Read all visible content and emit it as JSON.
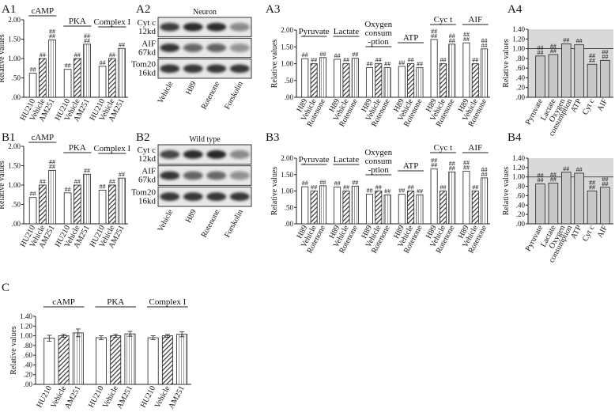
{
  "panels": [
    {
      "label": "A1",
      "kind": "bar",
      "ylabel": "Relative values",
      "ylim": [
        0,
        2.0
      ],
      "yticks": [
        "2.00",
        "1.50",
        "1.00",
        ".50",
        ".00"
      ],
      "groups": [
        "cAMP",
        "PKA",
        "Complex I"
      ],
      "categories": [
        [
          "HU210",
          "Vehicle",
          "AM251"
        ],
        [
          "HU210",
          "Vehicle",
          "AM251"
        ],
        [
          "HU210",
          "Vehicle",
          "AM251"
        ]
      ],
      "values": [
        [
          0.62,
          1.0,
          1.48
        ],
        [
          0.72,
          1.0,
          1.37
        ],
        [
          0.8,
          1.0,
          1.26
        ]
      ],
      "marks": [
        [
          "##",
          "##",
          "##"
        ],
        [
          "##",
          "##",
          "##"
        ],
        [
          "##",
          "##",
          "##"
        ]
      ]
    },
    {
      "label": "B1",
      "kind": "bar",
      "ylabel": "Relative values",
      "ylim": [
        0,
        2.0
      ],
      "yticks": [
        "2.00",
        "1.50",
        "1.00",
        ".50",
        ".00"
      ],
      "groups": [
        "cAMP",
        "PKA",
        "Complex I"
      ],
      "categories": [
        [
          "HU210",
          "Vehicle",
          "AM251"
        ],
        [
          "HU210",
          "Vehicle",
          "AM251"
        ],
        [
          "HU210",
          "Vehicle",
          "AM251"
        ]
      ],
      "values": [
        [
          0.68,
          1.0,
          1.38
        ],
        [
          0.8,
          1.0,
          1.28
        ],
        [
          0.87,
          1.0,
          1.18
        ]
      ],
      "marks": [
        [
          "##",
          "##",
          "##"
        ],
        [
          "##",
          "##",
          "##"
        ],
        [
          "##",
          "##",
          "##"
        ]
      ]
    },
    {
      "label": "A2",
      "kind": "blot",
      "title": "Neuron",
      "rows": [
        "Cyt c\n12kd",
        "AIF\n67kd",
        "Tom20\n16kd"
      ],
      "lanes": [
        "Vehicle",
        "H89",
        "Rotenone",
        "Forskolin"
      ],
      "intensity": [
        [
          0.78,
          0.9,
          0.9,
          0.45
        ],
        [
          0.82,
          0.6,
          0.62,
          0.4
        ],
        [
          0.85,
          0.85,
          0.85,
          0.85
        ]
      ]
    },
    {
      "label": "B2",
      "kind": "blot",
      "title": "Wild type",
      "rows": [
        "Cyt c\n12kd",
        "AIF\n67kd",
        "Tom20\n16kd"
      ],
      "lanes": [
        "Vehicle",
        "H89",
        "Rotenone",
        "Forskolin"
      ],
      "intensity": [
        [
          0.75,
          0.9,
          0.92,
          0.45
        ],
        [
          0.82,
          0.62,
          0.6,
          0.42
        ],
        [
          0.85,
          0.85,
          0.85,
          0.85
        ]
      ]
    },
    {
      "label": "A3",
      "kind": "bar",
      "ylabel": "Relative values",
      "ylim": [
        0,
        2.0
      ],
      "yticks": [
        "2.00",
        "1.50",
        "1.00",
        ".50",
        ".00"
      ],
      "groups": [
        "Pyruvate",
        "Lactate",
        "Oxygen\nconsum\n-ption",
        "ATP",
        "Cyc t",
        "AIF"
      ],
      "categories": [
        [
          "H89",
          "Vehicle",
          "Rotenone"
        ],
        [
          "H89",
          "Vehicle",
          "Rotenone"
        ],
        [
          "H89",
          "Vehicle",
          "Rotenone"
        ],
        [
          "H89",
          "Vehicle",
          "Rotenone"
        ],
        [
          "H89",
          "Vehicle",
          "Rotenone"
        ],
        [
          "H89",
          "Vehicle",
          "Rotenone"
        ]
      ],
      "values": [
        [
          1.15,
          1.0,
          1.18
        ],
        [
          1.13,
          1.0,
          1.16
        ],
        [
          0.88,
          1.0,
          0.88
        ],
        [
          0.92,
          1.0,
          0.88
        ],
        [
          1.72,
          1.0,
          1.58
        ],
        [
          1.62,
          1.0,
          1.44
        ]
      ],
      "marks": [
        [
          "##",
          "##",
          "##"
        ],
        [
          "##",
          "##",
          "##"
        ],
        [
          "##",
          "##",
          "##"
        ],
        [
          "##",
          "##",
          "##"
        ],
        [
          "##",
          "##",
          "##"
        ],
        [
          "##",
          "##",
          "##"
        ]
      ]
    },
    {
      "label": "B3",
      "kind": "bar",
      "ylabel": "Relative values",
      "ylim": [
        0,
        2.0
      ],
      "yticks": [
        "2.00",
        "1.50",
        "1.00",
        ".50",
        ".00"
      ],
      "groups": [
        "Pyruvate",
        "Lactate",
        "Oxygen\nconsum\n-ption",
        "ATP",
        "Cyc t",
        "AIF"
      ],
      "categories": [
        [
          "H89",
          "Vehicle",
          "Rotenone"
        ],
        [
          "H89",
          "Vehicle",
          "Rotenone"
        ],
        [
          "H89",
          "Vehicle",
          "Rotenone"
        ],
        [
          "H89",
          "Vehicle",
          "Rotenone"
        ],
        [
          "H89",
          "Vehicle",
          "Rotenone"
        ],
        [
          "H89",
          "Vehicle",
          "Rotenone"
        ]
      ],
      "values": [
        [
          1.13,
          1.0,
          1.16
        ],
        [
          1.12,
          1.0,
          1.15
        ],
        [
          0.9,
          1.0,
          0.88
        ],
        [
          0.9,
          1.0,
          0.88
        ],
        [
          1.67,
          1.0,
          1.58
        ],
        [
          1.6,
          1.0,
          1.4
        ]
      ],
      "marks": [
        [
          "##",
          "##",
          "##"
        ],
        [
          "##",
          "##",
          "##"
        ],
        [
          "##",
          "##",
          "##"
        ],
        [
          "##",
          "##",
          "##"
        ],
        [
          "##",
          "##",
          "##"
        ],
        [
          "##",
          "##",
          "##"
        ]
      ]
    },
    {
      "label": "A4",
      "kind": "bar",
      "ylabel": "Relative values",
      "ylim": [
        0,
        1.4
      ],
      "yticks": [
        "1.40",
        "1.20",
        "1.00",
        ".80",
        ".60",
        ".40",
        ".20",
        ".00"
      ],
      "reference": 1.0,
      "groups": [
        ""
      ],
      "categories": [
        [
          "Pyruvate",
          "Lactate",
          "Oxygen\nconsumption",
          "ATP",
          "Cyt c",
          "AIF"
        ]
      ],
      "values": [
        [
          0.85,
          0.88,
          1.1,
          1.08,
          0.68,
          0.76
        ]
      ],
      "marks": [
        [
          "##",
          "##",
          "##",
          "##",
          "##",
          "##"
        ]
      ]
    },
    {
      "label": "B4",
      "kind": "bar",
      "ylabel": "Relative values",
      "ylim": [
        0,
        1.4
      ],
      "yticks": [
        "1.40",
        "1.20",
        "1.00",
        ".80",
        ".60",
        ".40",
        ".20",
        ".00"
      ],
      "reference": 1.0,
      "groups": [
        ""
      ],
      "categories": [
        [
          "Pyruvate",
          "Lactate",
          "Oxygen\nconsumption",
          "ATP",
          "Cyt c",
          "AIF"
        ]
      ],
      "values": [
        [
          0.85,
          0.87,
          1.1,
          1.08,
          0.7,
          0.78
        ]
      ],
      "marks": [
        [
          "##",
          "##",
          "##",
          "##",
          "##",
          "##"
        ]
      ]
    },
    {
      "label": "C",
      "kind": "bar",
      "ylabel": "Relative values",
      "ylim": [
        0,
        1.4
      ],
      "yticks": [
        "1.40",
        "1.20",
        "1.00",
        ".80",
        ".60",
        ".40",
        ".20",
        ".00"
      ],
      "groups": [
        "cAMP",
        "PKA",
        "Complex I"
      ],
      "categories": [
        [
          "HU210",
          "Vehicle",
          "AM251"
        ],
        [
          "HU210",
          "Vehicle",
          "AM251"
        ],
        [
          "HU210",
          "Vehicle",
          "AM251"
        ]
      ],
      "values": [
        [
          0.95,
          1.0,
          1.06
        ],
        [
          0.96,
          1.0,
          1.04
        ],
        [
          0.96,
          1.0,
          1.03
        ]
      ],
      "errors": [
        [
          0.06,
          0.03,
          0.08
        ],
        [
          0.04,
          0.03,
          0.05
        ],
        [
          0.04,
          0.03,
          0.05
        ]
      ]
    }
  ],
  "chart_data": [
    {
      "type": "bar",
      "title": "",
      "ylabel": "Relative values",
      "ylim": [
        0,
        2.0
      ],
      "categories": [
        "cAMP HU210",
        "cAMP Vehicle",
        "cAMP AM251",
        "PKA HU210",
        "PKA Vehicle",
        "PKA AM251",
        "Complex I HU210",
        "Complex I Vehicle",
        "Complex I AM251"
      ],
      "values": [
        0.62,
        1.0,
        1.48,
        0.72,
        1.0,
        1.37,
        0.8,
        1.0,
        1.26
      ]
    },
    {
      "type": "bar",
      "title": "",
      "ylabel": "Relative values",
      "ylim": [
        0,
        2.0
      ],
      "categories": [
        "cAMP HU210",
        "cAMP Vehicle",
        "cAMP AM251",
        "PKA HU210",
        "PKA Vehicle",
        "PKA AM251",
        "Complex I HU210",
        "Complex I Vehicle",
        "Complex I AM251"
      ],
      "values": [
        0.68,
        1.0,
        1.38,
        0.8,
        1.0,
        1.28,
        0.87,
        1.0,
        1.18
      ]
    },
    {
      "type": "bar",
      "title": "",
      "ylabel": "Relative values",
      "ylim": [
        0,
        2.0
      ],
      "categories": [
        "Pyruvate H89",
        "Pyruvate Vehicle",
        "Pyruvate Rotenone",
        "Lactate H89",
        "Lactate Vehicle",
        "Lactate Rotenone",
        "Oxygen H89",
        "Oxygen Vehicle",
        "Oxygen Rotenone",
        "ATP H89",
        "ATP Vehicle",
        "ATP Rotenone",
        "Cyc t H89",
        "Cyc t Vehicle",
        "Cyc t Rotenone",
        "AIF H89",
        "AIF Vehicle",
        "AIF Rotenone"
      ],
      "values": [
        1.15,
        1.0,
        1.18,
        1.13,
        1.0,
        1.16,
        0.88,
        1.0,
        0.88,
        0.92,
        1.0,
        0.88,
        1.72,
        1.0,
        1.58,
        1.62,
        1.0,
        1.44
      ]
    },
    {
      "type": "bar",
      "title": "",
      "ylabel": "Relative values",
      "ylim": [
        0,
        2.0
      ],
      "categories": [
        "Pyruvate H89",
        "Pyruvate Vehicle",
        "Pyruvate Rotenone",
        "Lactate H89",
        "Lactate Vehicle",
        "Lactate Rotenone",
        "Oxygen H89",
        "Oxygen Vehicle",
        "Oxygen Rotenone",
        "ATP H89",
        "ATP Vehicle",
        "ATP Rotenone",
        "Cyc t H89",
        "Cyc t Vehicle",
        "Cyc t Rotenone",
        "AIF H89",
        "AIF Vehicle",
        "AIF Rotenone"
      ],
      "values": [
        1.13,
        1.0,
        1.16,
        1.12,
        1.0,
        1.15,
        0.9,
        1.0,
        0.88,
        0.9,
        1.0,
        0.88,
        1.67,
        1.0,
        1.58,
        1.6,
        1.0,
        1.4
      ]
    },
    {
      "type": "bar",
      "title": "",
      "ylabel": "Relative values",
      "ylim": [
        0,
        1.4
      ],
      "categories": [
        "Pyruvate",
        "Lactate",
        "Oxygen consumption",
        "ATP",
        "Cyt c",
        "AIF"
      ],
      "values": [
        0.85,
        0.88,
        1.1,
        1.08,
        0.68,
        0.76
      ]
    },
    {
      "type": "bar",
      "title": "",
      "ylabel": "Relative values",
      "ylim": [
        0,
        1.4
      ],
      "categories": [
        "Pyruvate",
        "Lactate",
        "Oxygen consumption",
        "ATP",
        "Cyt c",
        "AIF"
      ],
      "values": [
        0.85,
        0.87,
        1.1,
        1.08,
        0.7,
        0.78
      ]
    },
    {
      "type": "bar",
      "title": "",
      "ylabel": "Relative values",
      "ylim": [
        0,
        1.4
      ],
      "categories": [
        "cAMP HU210",
        "cAMP Vehicle",
        "cAMP AM251",
        "PKA HU210",
        "PKA Vehicle",
        "PKA AM251",
        "Complex I HU210",
        "Complex I Vehicle",
        "Complex I AM251"
      ],
      "values": [
        0.95,
        1.0,
        1.06,
        0.96,
        1.0,
        1.04,
        0.96,
        1.0,
        1.03
      ]
    }
  ],
  "colors": {
    "hatch": "#333333",
    "shade": "#d9d9d9",
    "bar_fill": "#c8c8c8",
    "blot_bg": "#e8e8e8",
    "band": "#141414"
  }
}
